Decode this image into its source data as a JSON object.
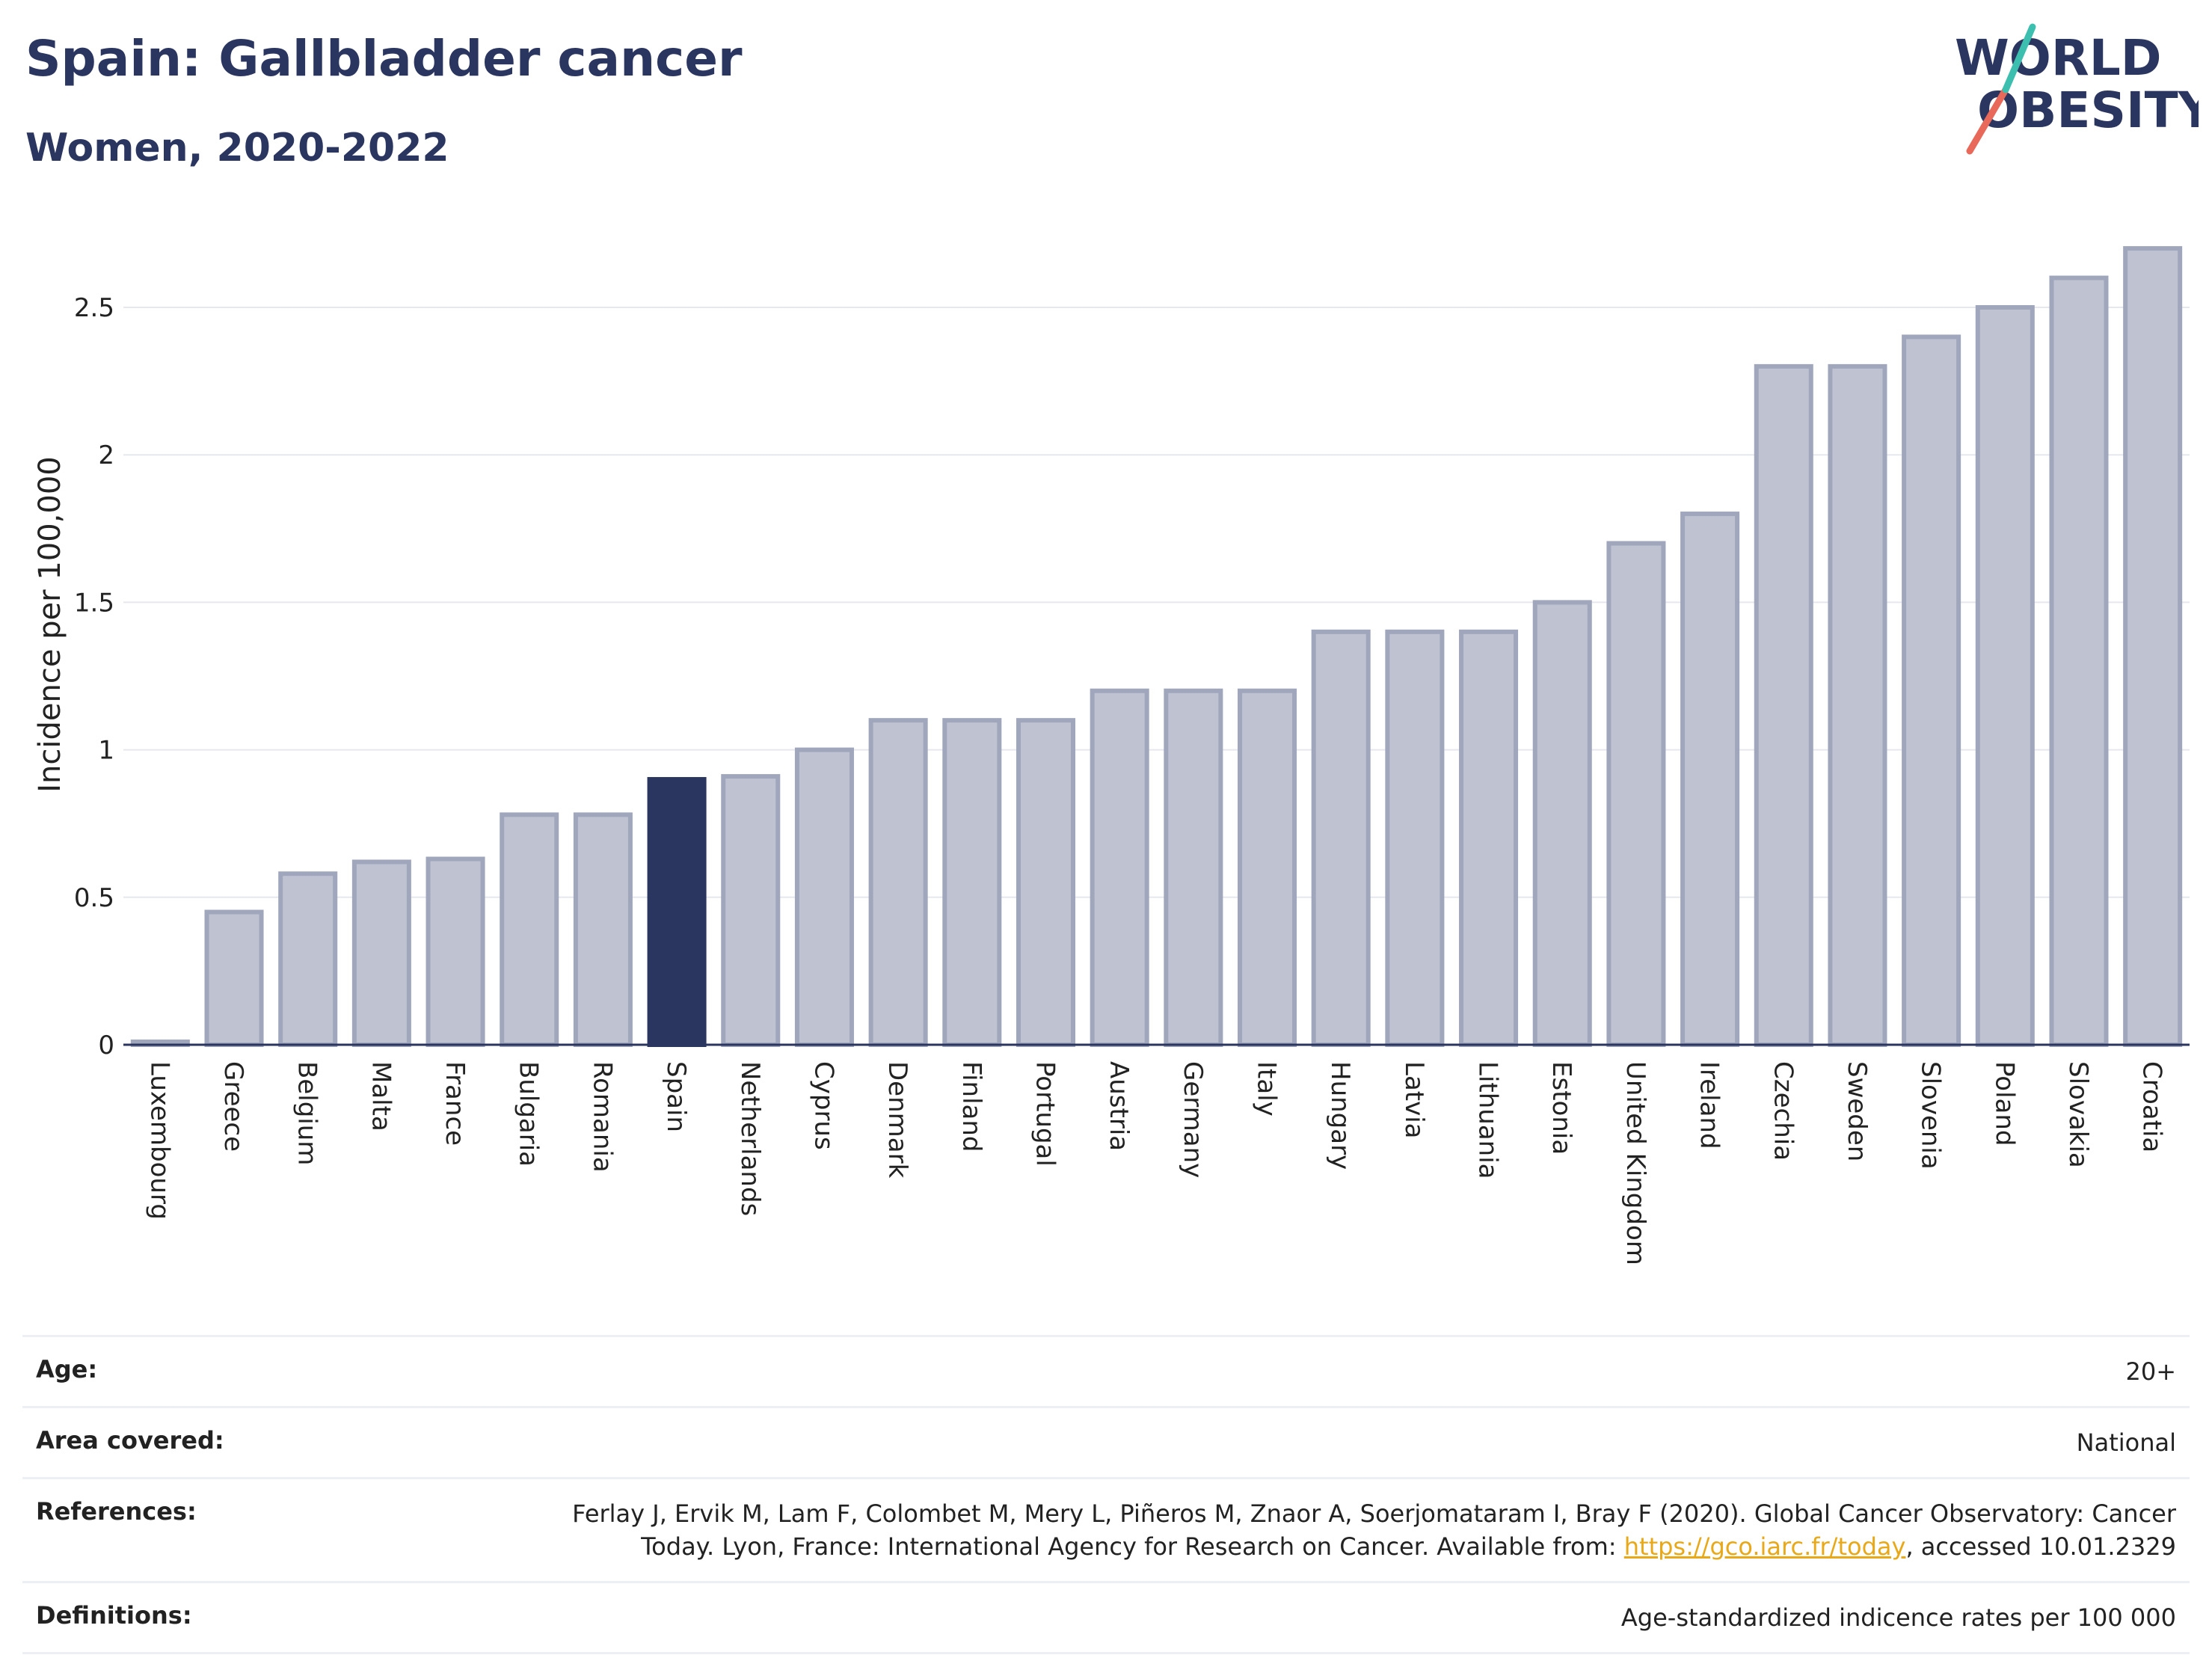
{
  "header": {
    "title": "Spain: Gallbladder cancer",
    "subtitle": "Women, 2020-2022"
  },
  "logo": {
    "line1": "WORLD",
    "line2": "OBESITY"
  },
  "colors": {
    "highlight": "#2b3660",
    "bar_fill": "#bfc3d1",
    "bar_stroke": "#a0a6bb",
    "grid": "#e6e8ee",
    "logo_accent_teal": "#3dbfb0",
    "logo_accent_red": "#e8685a",
    "link": "#e8a817"
  },
  "chart_data": {
    "type": "bar",
    "title": "Spain: Gallbladder cancer",
    "subtitle": "Women, 2020-2022",
    "xlabel": "",
    "ylabel": "Incidence per 100,000",
    "ylim": [
      0,
      2.75
    ],
    "yticks": [
      0,
      0.5,
      1,
      1.5,
      2,
      2.5
    ],
    "ytick_labels": [
      "0",
      "0.5",
      "1",
      "1.5",
      "2",
      "2.5"
    ],
    "grid": true,
    "highlight": "Spain",
    "categories": [
      "Luxembourg",
      "Greece",
      "Belgium",
      "Malta",
      "France",
      "Bulgaria",
      "Romania",
      "Spain",
      "Netherlands",
      "Cyprus",
      "Denmark",
      "Finland",
      "Portugal",
      "Austria",
      "Germany",
      "Italy",
      "Hungary",
      "Latvia",
      "Lithuania",
      "Estonia",
      "United Kingdom",
      "Ireland",
      "Czechia",
      "Sweden",
      "Slovenia",
      "Poland",
      "Slovakia",
      "Croatia"
    ],
    "values": [
      0.01,
      0.45,
      0.58,
      0.62,
      0.63,
      0.78,
      0.78,
      0.9,
      0.91,
      1.0,
      1.1,
      1.1,
      1.1,
      1.2,
      1.2,
      1.2,
      1.4,
      1.4,
      1.4,
      1.5,
      1.7,
      1.8,
      2.3,
      2.3,
      2.4,
      2.5,
      2.6,
      2.7
    ]
  },
  "info": {
    "age_label": "Age:",
    "age_value": "20+",
    "area_label": "Area covered:",
    "area_value": "National",
    "references_label": "References:",
    "references_text_1": "Ferlay J, Ervik M, Lam F, Colombet M, Mery L, Piñeros M, Znaor A, Soerjomataram I, Bray F (2020). Global Cancer Observatory: Cancer Today. Lyon, France: International Agency for Research on Cancer. Available from: ",
    "references_link": "https://gco.iarc.fr/today",
    "references_text_2": ", accessed 10.01.2329",
    "definitions_label": "Definitions:",
    "definitions_value": "Age-standardized indicence rates per 100 000"
  }
}
